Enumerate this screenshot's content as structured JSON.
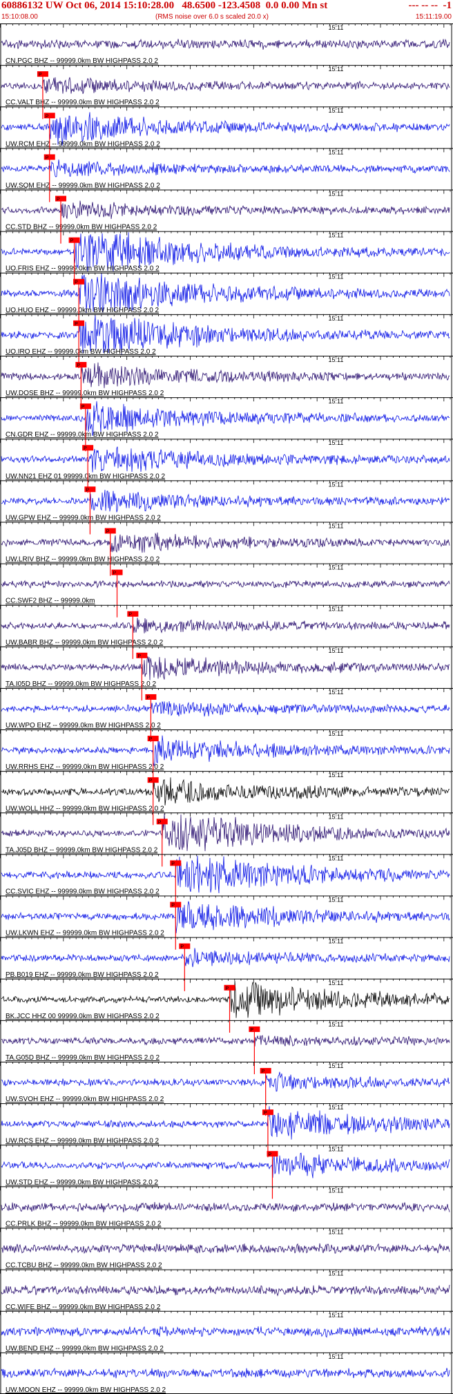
{
  "header": {
    "title": "60886132 UW Oct 06, 2014 15:10:28.00   48.6500 -123.4508  0.0 0.00 Mn st",
    "flags": "--- -- --  -1",
    "start_time": "15:10:08.00",
    "end_time": "15:11:19.00",
    "rms_note": "(RMS noise over 6.0 s scaled 20.0 x)"
  },
  "colors": {
    "accent": "#cc0000",
    "blue": "#0a14e6",
    "navy": "#2a1070",
    "black": "#000000",
    "pick": "#ff0000"
  },
  "chart_data": {
    "type": "seismogram",
    "time_range": [
      "15:10:08.00",
      "15:11:19.00"
    ],
    "minute_marker": "15:11",
    "pick_label": "P",
    "traces": [
      {
        "station": "CN.PGC BHZ -- 99999.0km BW  HIGHPASS  2.0  2",
        "color": "navy",
        "amp": 0.25,
        "pick": null
      },
      {
        "station": "CC.VALT BHZ -- 99999.0km BW  HIGHPASS  2.0  2",
        "color": "navy",
        "amp": 0.3,
        "pick": 0.095
      },
      {
        "station": "UW.RCM EHZ -- 99999.0km BW  HIGHPASS  2.0  2",
        "color": "blue",
        "amp": 0.7,
        "pick": 0.11
      },
      {
        "station": "UW.SQM EHZ -- 99999.0km BW  HIGHPASS  2.0  2",
        "color": "blue",
        "amp": 0.3,
        "pick": 0.11
      },
      {
        "station": "CC.STD BHZ -- 99999.0km BW  HIGHPASS  2.0  2",
        "color": "navy",
        "amp": 0.3,
        "pick": 0.135
      },
      {
        "station": "UO.FRIS EHZ -- 99999.0km BW  HIGHPASS  2.0  2",
        "color": "blue",
        "amp": 1.0,
        "pick": 0.165
      },
      {
        "station": "UO.HUO EHZ -- 99999.0km BW  HIGHPASS  2.0  2",
        "color": "blue",
        "amp": 1.0,
        "pick": 0.175
      },
      {
        "station": "UO.IRO EHZ -- 99999.0km BW  HIGHPASS  2.0  2",
        "color": "blue",
        "amp": 1.0,
        "pick": 0.175
      },
      {
        "station": "UW.DOSE BHZ -- 99999.0km BW  HIGHPASS  2.0  2",
        "color": "navy",
        "amp": 0.5,
        "pick": 0.18
      },
      {
        "station": "CN.GDR EHZ -- 99999.0km BW  HIGHPASS  2.0  2",
        "color": "blue",
        "amp": 0.6,
        "pick": 0.19
      },
      {
        "station": "UW.NN21 EHZ 01 99999.0km BW  HIGHPASS  2.0  2",
        "color": "blue",
        "amp": 0.6,
        "pick": 0.195
      },
      {
        "station": "UW.GPW EHZ -- 99999.0km BW  HIGHPASS  2.0  2",
        "color": "blue",
        "amp": 0.4,
        "pick": 0.2
      },
      {
        "station": "UW.LRIV BHZ -- 99999.0km BW  HIGHPASS  2.0  2",
        "color": "navy",
        "amp": 0.4,
        "pick": 0.245
      },
      {
        "station": "CC.SWF2 BHZ -- 99999.0km",
        "color": "navy",
        "amp": 0.0,
        "pick": 0.26
      },
      {
        "station": "UW.BABR BHZ -- 99999.0km BW  HIGHPASS  2.0  2",
        "color": "navy",
        "amp": 0.25,
        "pick": 0.295
      },
      {
        "station": "TA.I05D BHZ -- 99999.0km BW  HIGHPASS  2.0  2",
        "color": "navy",
        "amp": 0.5,
        "pick": 0.315
      },
      {
        "station": "UW.WPO EHZ -- 99999.0km BW  HIGHPASS  2.0  2",
        "color": "blue",
        "amp": 0.3,
        "pick": 0.335
      },
      {
        "station": "UW.RRHS EHZ -- 99999.0km BW  HIGHPASS  2.0  2",
        "color": "blue",
        "amp": 0.5,
        "pick": 0.34
      },
      {
        "station": "UW.WOLL HHZ -- 99999.0km BW  HIGHPASS  2.0  2",
        "color": "black",
        "amp": 0.6,
        "pick": 0.34
      },
      {
        "station": "TA.J05D BHZ -- 99999.0km BW  HIGHPASS  2.0  2",
        "color": "navy",
        "amp": 0.9,
        "pick": 0.36
      },
      {
        "station": "CC.SVIC EHZ -- 99999.0km BW  HIGHPASS  2.0  2",
        "color": "blue",
        "amp": 0.9,
        "pick": 0.39
      },
      {
        "station": "UW.LKWN EHZ -- 99999.0km BW  HIGHPASS  2.0  2",
        "color": "blue",
        "amp": 0.6,
        "pick": 0.39
      },
      {
        "station": "PB.B019 EHZ -- 99999.0km BW  HIGHPASS  2.0  2",
        "color": "blue",
        "amp": 0.3,
        "pick": 0.41
      },
      {
        "station": "BK.JCC HHZ 00 99999.0km BW  HIGHPASS  2.0  2",
        "color": "black",
        "amp": 0.8,
        "pick": 0.51
      },
      {
        "station": "TA.G05D BHZ -- 99999.0km BW  HIGHPASS  2.0  2",
        "color": "navy",
        "amp": 0.15,
        "pick": 0.565
      },
      {
        "station": "UW.SVOH EHZ -- 99999.0km BW  HIGHPASS  2.0  2",
        "color": "blue",
        "amp": 0.3,
        "pick": 0.59
      },
      {
        "station": "UW.RCS EHZ -- 99999.0km BW  HIGHPASS  2.0  2",
        "color": "blue",
        "amp": 0.6,
        "pick": 0.595
      },
      {
        "station": "UW.STD EHZ -- 99999.0km BW  HIGHPASS  2.0  2",
        "color": "blue",
        "amp": 0.5,
        "pick": 0.605
      },
      {
        "station": "CC.PRLK BHZ -- 99999.0km BW  HIGHPASS  2.0  2",
        "color": "navy",
        "amp": 0.25,
        "pick": null
      },
      {
        "station": "CC.TCBU BHZ -- 99999.0km BW  HIGHPASS  2.0  2",
        "color": "navy",
        "amp": 0.25,
        "pick": null
      },
      {
        "station": "CC.WIFE BHZ -- 99999.0km BW  HIGHPASS  2.0  2",
        "color": "navy",
        "amp": 0.25,
        "pick": null
      },
      {
        "station": "UW.BEND EHZ -- 99999.0km BW  HIGHPASS  2.0  2",
        "color": "blue",
        "amp": 0.3,
        "pick": null
      },
      {
        "station": "UW.MOON EHZ -- 99999.0km BW  HIGHPASS  2.0  2",
        "color": "blue",
        "amp": 0.25,
        "pick": null
      }
    ]
  }
}
